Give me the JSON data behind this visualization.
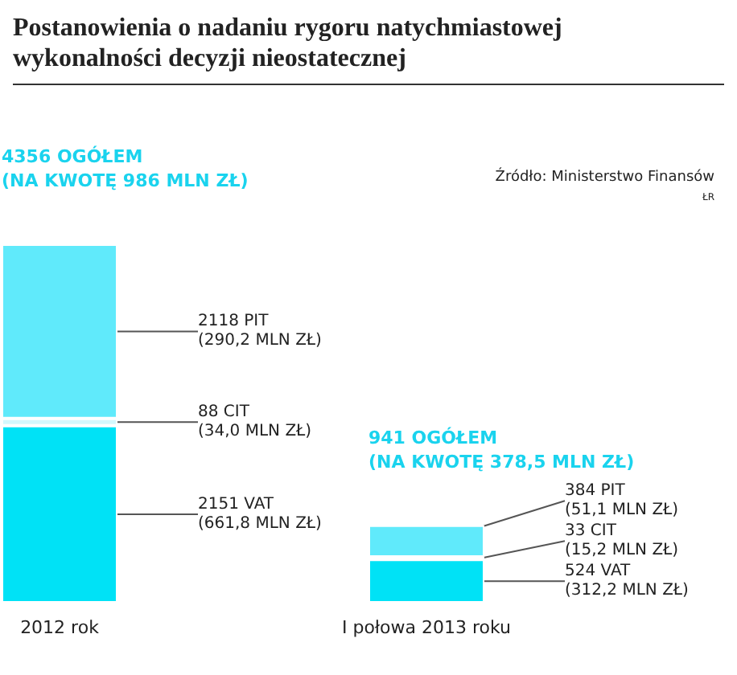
{
  "chart_data": {
    "type": "bar",
    "title": "Postanowienia o nadaniu rygoru natychmiastowej wykonalności decyzji nieostatecznej",
    "categories": [
      "2012 rok",
      "I połowa 2013 roku"
    ],
    "stacked": true,
    "tick_labels": "x",
    "series": [
      {
        "color": "#00e2f6",
        "values": [
          2151,
          524
        ],
        "value_labels": [
          "2151 VAT\n(661,8 MLN ZŁ)",
          "524 VAT\n(312,2 MLN ZŁ)"
        ]
      },
      {
        "color": "#d4f8fd",
        "values": [
          88,
          33
        ],
        "value_labels": [
          "88 CIT\n(34,0 MLN ZŁ)",
          "33 CIT\n(15,2 MLN ZŁ)"
        ]
      },
      {
        "color": "#60eafb",
        "values": [
          2118,
          384
        ],
        "value_labels": [
          "2118 PIT\n(290,2 MLN ZŁ)",
          "384 PIT\n(51,1 MLN ZŁ)"
        ]
      }
    ],
    "totals": [
      "4356 OGÓŁEM\n(NA KWOTĘ 986 MLN ZŁ)",
      "941 OGÓŁEM\n(NA KWOTĘ 378,5 MLN ZŁ)"
    ],
    "annotations": [
      "Źródło: Ministerstwo Finansów",
      "ŁR"
    ]
  }
}
